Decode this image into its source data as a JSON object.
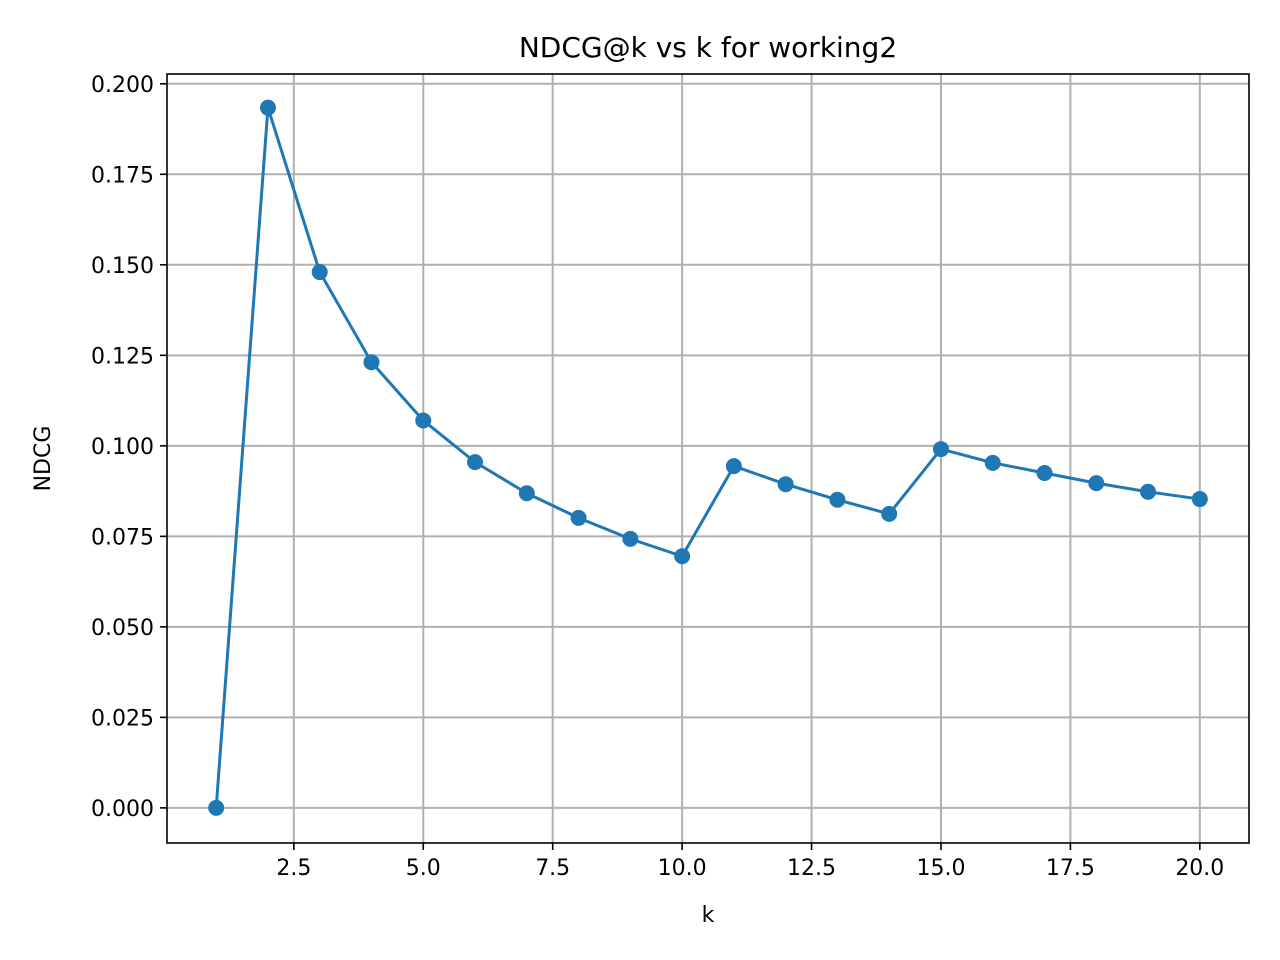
{
  "chart_data": {
    "type": "line",
    "title": "NDCG@k vs k for working2",
    "xlabel": "k",
    "ylabel": "NDCG",
    "xlim": [
      0.05,
      20.95
    ],
    "ylim": [
      -0.0097,
      0.2027
    ],
    "xticks": [
      2.5,
      5.0,
      7.5,
      10.0,
      12.5,
      15.0,
      17.5,
      20.0
    ],
    "xtick_labels": [
      "2.5",
      "5.0",
      "7.5",
      "10.0",
      "12.5",
      "15.0",
      "17.5",
      "20.0"
    ],
    "yticks": [
      0.0,
      0.025,
      0.05,
      0.075,
      0.1,
      0.125,
      0.15,
      0.175,
      0.2
    ],
    "ytick_labels": [
      "0.000",
      "0.025",
      "0.050",
      "0.075",
      "0.100",
      "0.125",
      "0.150",
      "0.175",
      "0.200"
    ],
    "grid": true,
    "series": [
      {
        "color": "#1f77b4",
        "marker": "circle",
        "x": [
          1,
          2,
          3,
          4,
          5,
          6,
          7,
          8,
          9,
          10,
          11,
          12,
          13,
          14,
          15,
          16,
          17,
          18,
          19,
          20
        ],
        "y": [
          0.0,
          0.1934,
          0.148,
          0.1231,
          0.107,
          0.0955,
          0.0869,
          0.0801,
          0.0743,
          0.0695,
          0.0944,
          0.0894,
          0.0851,
          0.0812,
          0.0991,
          0.0953,
          0.0925,
          0.0897,
          0.0873,
          0.0853
        ]
      }
    ]
  }
}
